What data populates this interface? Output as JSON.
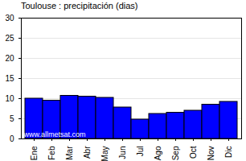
{
  "chart_data": {
    "type": "bar",
    "title": "Toulouse : precipitación (dias)",
    "categories": [
      "Ene",
      "Feb",
      "Mar",
      "Abr",
      "May",
      "Jun",
      "Jul",
      "Ago",
      "Sep",
      "Oct",
      "Nov",
      "Dic"
    ],
    "values": [
      10,
      9.5,
      10.7,
      10.5,
      10.2,
      7.8,
      4.8,
      6.2,
      6.5,
      7,
      8.5,
      9.2
    ],
    "color": "#0000ff",
    "ylim": [
      0,
      30
    ],
    "yticks": [
      0,
      5,
      10,
      15,
      20,
      25,
      30
    ],
    "grid": true,
    "annotations": [
      "www.allmetsat.com"
    ]
  }
}
